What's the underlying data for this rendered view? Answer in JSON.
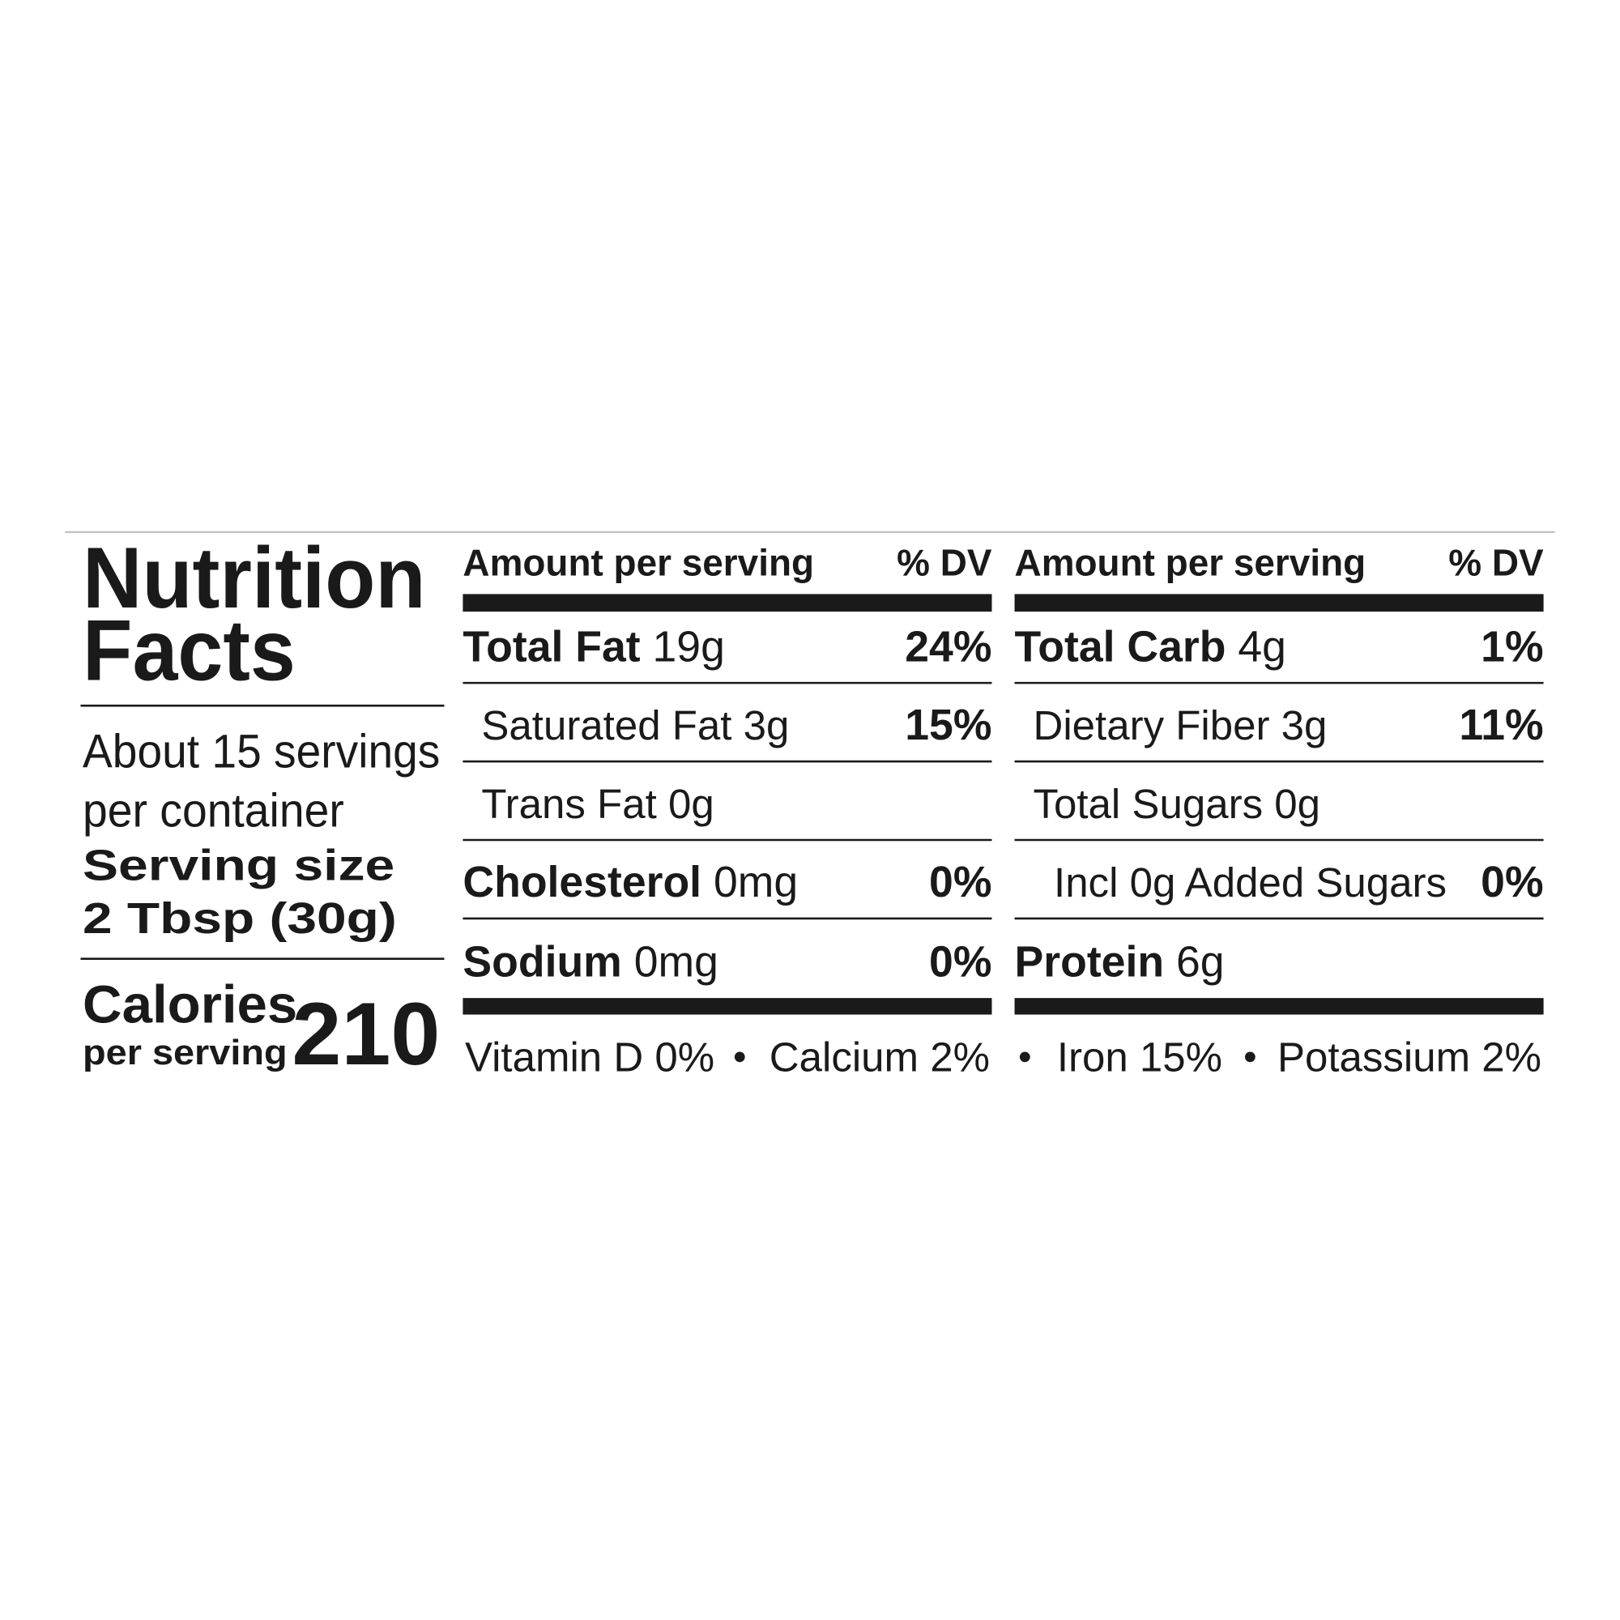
{
  "title": [
    "Nutrition",
    "Facts"
  ],
  "servings_per_container": [
    "About 15 servings",
    "per container"
  ],
  "serving_size_label": "Serving size",
  "serving_size": "2 Tbsp (30g)",
  "calories_label": "Calories",
  "calories_sublabel": "per serving",
  "calories": 210,
  "columns": [
    {
      "header_amount": "Amount per serving",
      "header_dv": "% DV",
      "rows": [
        {
          "name": "Total Fat",
          "amount": "19g",
          "dv": "24%",
          "level": 0
        },
        {
          "name": "Saturated Fat",
          "amount": "3g",
          "dv": "15%",
          "level": 1
        },
        {
          "name": "Trans Fat",
          "amount": "0g",
          "level": 1
        },
        {
          "name": "Cholesterol",
          "amount": "0mg",
          "dv": "0%",
          "level": 0
        },
        {
          "name": "Sodium",
          "amount": "0mg",
          "dv": "0%",
          "level": 0
        }
      ]
    },
    {
      "header_amount": "Amount per serving",
      "header_dv": "% DV",
      "rows": [
        {
          "name": "Total Carb",
          "amount": "4g",
          "dv": "1%",
          "level": 0
        },
        {
          "name": "Dietary Fiber",
          "amount": "3g",
          "dv": "11%",
          "level": 1
        },
        {
          "name": "Total Sugars",
          "amount": "0g",
          "level": 1
        },
        {
          "name": "Incl 0g Added Sugars",
          "dv": "0%",
          "level": 2
        },
        {
          "name": "Protein",
          "amount": "6g",
          "level": 0
        }
      ]
    }
  ],
  "vitamins": [
    "Vitamin D 0%",
    "Calcium 2%",
    "Iron 15%",
    "Potassium 2%"
  ]
}
